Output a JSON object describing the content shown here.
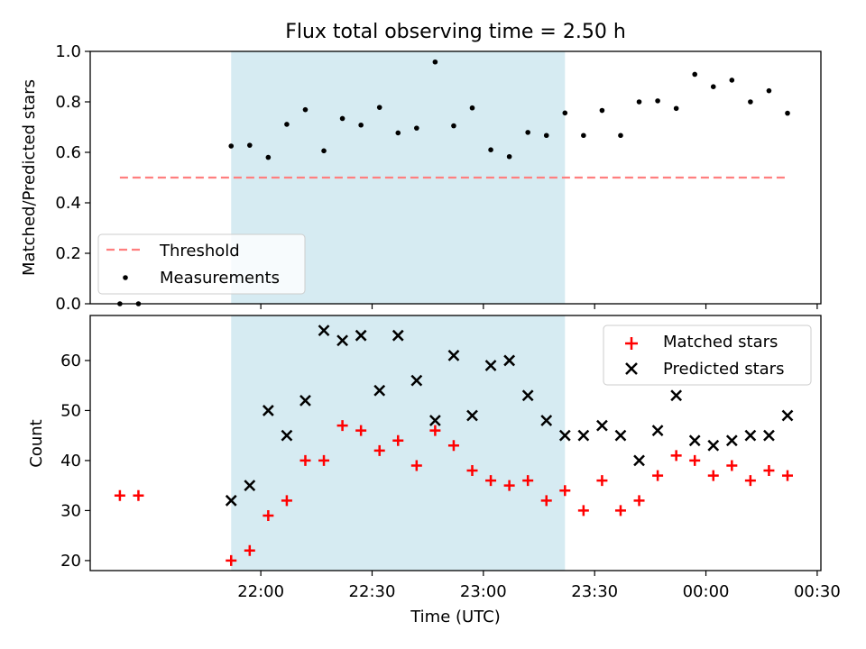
{
  "chart_data": [
    {
      "type": "scatter",
      "title": "Flux total observing time = 2.50 h",
      "ylabel": "Matched/Predicted stars",
      "ylim": [
        0,
        1
      ],
      "yticks": [
        "0.0",
        "0.2",
        "0.4",
        "0.6",
        "0.8",
        "1.0"
      ],
      "observing_window": [
        "21:52",
        "23:22"
      ],
      "threshold": {
        "value": 0.5,
        "x_range": [
          "21:22",
          "00:22"
        ],
        "color": "#ff7f7f"
      },
      "measurements": [
        [
          "21:22",
          0.0
        ],
        [
          "21:27",
          0.0
        ],
        [
          "21:52",
          0.625
        ],
        [
          "21:57",
          0.628
        ],
        [
          "22:02",
          0.58
        ],
        [
          "22:07",
          0.711
        ],
        [
          "22:12",
          0.769
        ],
        [
          "22:17",
          0.606
        ],
        [
          "22:22",
          0.734
        ],
        [
          "22:27",
          0.708
        ],
        [
          "22:32",
          0.778
        ],
        [
          "22:37",
          0.677
        ],
        [
          "22:42",
          0.696
        ],
        [
          "22:47",
          0.958
        ],
        [
          "22:52",
          0.705
        ],
        [
          "22:57",
          0.776
        ],
        [
          "23:02",
          0.61
        ],
        [
          "23:07",
          0.583
        ],
        [
          "23:12",
          0.679
        ],
        [
          "23:17",
          0.667
        ],
        [
          "23:22",
          0.756
        ],
        [
          "23:27",
          0.667
        ],
        [
          "23:32",
          0.766
        ],
        [
          "23:37",
          0.667
        ],
        [
          "23:42",
          0.8
        ],
        [
          "23:47",
          0.804
        ],
        [
          "23:52",
          0.774
        ],
        [
          "23:57",
          0.909
        ],
        [
          "00:02",
          0.86
        ],
        [
          "00:07",
          0.886
        ],
        [
          "00:12",
          0.8
        ],
        [
          "00:17",
          0.844
        ],
        [
          "00:22",
          0.755
        ]
      ],
      "legend": {
        "position": "lower-left",
        "entries": [
          "Threshold",
          "Measurements"
        ]
      }
    },
    {
      "type": "scatter",
      "xlabel": "Time (UTC)",
      "ylabel": "Count",
      "ylim": [
        18,
        69
      ],
      "yticks": [
        "20",
        "30",
        "40",
        "50",
        "60"
      ],
      "xticks": [
        "22:00",
        "22:30",
        "23:00",
        "23:30",
        "00:00",
        "00:30"
      ],
      "observing_window": [
        "21:52",
        "23:22"
      ],
      "series": [
        {
          "name": "Matched stars",
          "marker": "plus",
          "color": "#ff0000",
          "points": [
            [
              "21:22",
              33
            ],
            [
              "21:27",
              33
            ],
            [
              "21:52",
              20
            ],
            [
              "21:57",
              22
            ],
            [
              "22:02",
              29
            ],
            [
              "22:07",
              32
            ],
            [
              "22:12",
              40
            ],
            [
              "22:17",
              40
            ],
            [
              "22:22",
              47
            ],
            [
              "22:27",
              46
            ],
            [
              "22:32",
              42
            ],
            [
              "22:37",
              44
            ],
            [
              "22:42",
              39
            ],
            [
              "22:47",
              46
            ],
            [
              "22:52",
              43
            ],
            [
              "22:57",
              38
            ],
            [
              "23:02",
              36
            ],
            [
              "23:07",
              35
            ],
            [
              "23:12",
              36
            ],
            [
              "23:17",
              32
            ],
            [
              "23:22",
              34
            ],
            [
              "23:27",
              30
            ],
            [
              "23:32",
              36
            ],
            [
              "23:37",
              30
            ],
            [
              "23:42",
              32
            ],
            [
              "23:47",
              37
            ],
            [
              "23:52",
              41
            ],
            [
              "23:57",
              40
            ],
            [
              "00:02",
              37
            ],
            [
              "00:07",
              39
            ],
            [
              "00:12",
              36
            ],
            [
              "00:17",
              38
            ],
            [
              "00:22",
              37
            ]
          ]
        },
        {
          "name": "Predicted stars",
          "marker": "x",
          "color": "#000000",
          "points": [
            [
              "21:52",
              32
            ],
            [
              "21:57",
              35
            ],
            [
              "22:02",
              50
            ],
            [
              "22:07",
              45
            ],
            [
              "22:12",
              52
            ],
            [
              "22:17",
              66
            ],
            [
              "22:22",
              64
            ],
            [
              "22:27",
              65
            ],
            [
              "22:32",
              54
            ],
            [
              "22:37",
              65
            ],
            [
              "22:42",
              56
            ],
            [
              "22:47",
              48
            ],
            [
              "22:52",
              61
            ],
            [
              "22:57",
              49
            ],
            [
              "23:02",
              59
            ],
            [
              "23:07",
              60
            ],
            [
              "23:12",
              53
            ],
            [
              "23:17",
              48
            ],
            [
              "23:22",
              45
            ],
            [
              "23:27",
              45
            ],
            [
              "23:32",
              47
            ],
            [
              "23:37",
              45
            ],
            [
              "23:42",
              40
            ],
            [
              "23:47",
              46
            ],
            [
              "23:52",
              53
            ],
            [
              "23:57",
              44
            ],
            [
              "00:02",
              43
            ],
            [
              "00:07",
              44
            ],
            [
              "00:12",
              45
            ],
            [
              "00:17",
              45
            ],
            [
              "00:22",
              49
            ]
          ]
        }
      ],
      "legend": {
        "position": "upper-right",
        "entries": [
          "Matched stars",
          "Predicted stars"
        ]
      }
    }
  ],
  "colors": {
    "shade": "#add8e6",
    "threshold": "#ff7f7f",
    "matched": "#ff0000",
    "predicted": "#000000"
  }
}
